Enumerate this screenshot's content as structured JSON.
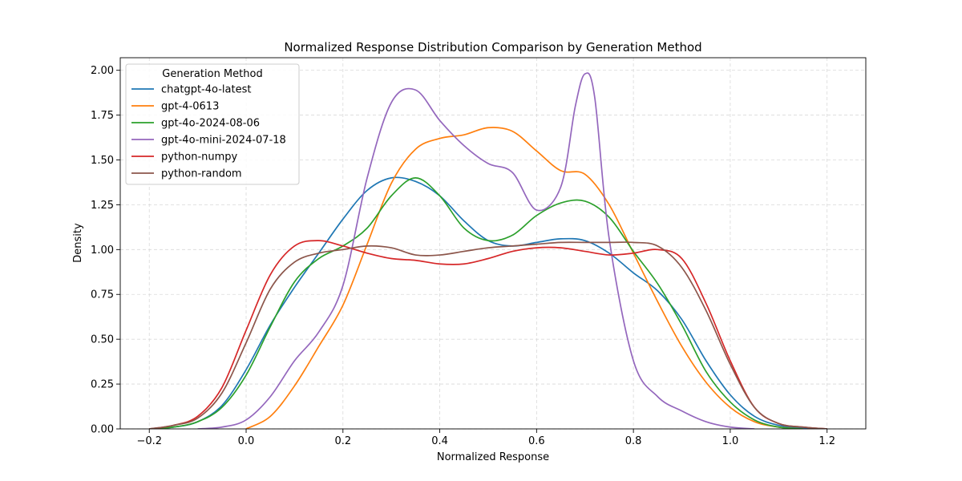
{
  "chart_data": {
    "type": "line",
    "title": "Normalized Response Distribution Comparison by Generation Method",
    "xlabel": "Normalized Response",
    "ylabel": "Density",
    "xlim": [
      -0.26,
      1.28
    ],
    "ylim": [
      0,
      2.07
    ],
    "xticks": [
      -0.2,
      0.0,
      0.2,
      0.4,
      0.6,
      0.8,
      1.0,
      1.2
    ],
    "xtick_labels": [
      "−0.2",
      "0.0",
      "0.2",
      "0.4",
      "0.6",
      "0.8",
      "1.0",
      "1.2"
    ],
    "yticks": [
      0,
      0.25,
      0.5,
      0.75,
      1.0,
      1.25,
      1.5,
      1.75,
      2.0
    ],
    "ytick_labels": [
      "0.00",
      "0.25",
      "0.50",
      "0.75",
      "1.00",
      "1.25",
      "1.50",
      "1.75",
      "2.00"
    ],
    "grid": true,
    "legend": {
      "title": "Generation Method",
      "placement": "top-left"
    },
    "series": [
      {
        "name": "chatgpt-4o-latest",
        "color": "#1f77b4",
        "points": [
          [
            -0.2,
            0
          ],
          [
            -0.15,
            0.01
          ],
          [
            -0.1,
            0.04
          ],
          [
            -0.05,
            0.13
          ],
          [
            0.0,
            0.33
          ],
          [
            0.05,
            0.58
          ],
          [
            0.1,
            0.79
          ],
          [
            0.15,
            0.98
          ],
          [
            0.2,
            1.17
          ],
          [
            0.25,
            1.33
          ],
          [
            0.3,
            1.4
          ],
          [
            0.35,
            1.38
          ],
          [
            0.4,
            1.3
          ],
          [
            0.45,
            1.16
          ],
          [
            0.5,
            1.05
          ],
          [
            0.55,
            1.02
          ],
          [
            0.6,
            1.04
          ],
          [
            0.65,
            1.06
          ],
          [
            0.7,
            1.05
          ],
          [
            0.75,
            0.98
          ],
          [
            0.8,
            0.87
          ],
          [
            0.85,
            0.77
          ],
          [
            0.9,
            0.61
          ],
          [
            0.95,
            0.38
          ],
          [
            1.0,
            0.19
          ],
          [
            1.05,
            0.07
          ],
          [
            1.1,
            0.02
          ],
          [
            1.15,
            0.005
          ],
          [
            1.2,
            0
          ]
        ]
      },
      {
        "name": "gpt-4-0613",
        "color": "#ff7f0e",
        "points": [
          [
            0.0,
            0
          ],
          [
            0.05,
            0.07
          ],
          [
            0.1,
            0.24
          ],
          [
            0.15,
            0.46
          ],
          [
            0.2,
            0.69
          ],
          [
            0.25,
            1.03
          ],
          [
            0.3,
            1.37
          ],
          [
            0.35,
            1.56
          ],
          [
            0.4,
            1.62
          ],
          [
            0.45,
            1.64
          ],
          [
            0.5,
            1.68
          ],
          [
            0.55,
            1.66
          ],
          [
            0.6,
            1.55
          ],
          [
            0.65,
            1.44
          ],
          [
            0.7,
            1.42
          ],
          [
            0.75,
            1.25
          ],
          [
            0.8,
            0.98
          ],
          [
            0.85,
            0.71
          ],
          [
            0.9,
            0.46
          ],
          [
            0.95,
            0.26
          ],
          [
            1.0,
            0.12
          ],
          [
            1.05,
            0.04
          ],
          [
            1.1,
            0.01
          ],
          [
            1.15,
            0
          ]
        ]
      },
      {
        "name": "gpt-4o-2024-08-06",
        "color": "#2ca02c",
        "points": [
          [
            -0.2,
            0
          ],
          [
            -0.15,
            0.01
          ],
          [
            -0.1,
            0.04
          ],
          [
            -0.05,
            0.12
          ],
          [
            0.0,
            0.3
          ],
          [
            0.05,
            0.57
          ],
          [
            0.1,
            0.82
          ],
          [
            0.15,
            0.95
          ],
          [
            0.2,
            1.02
          ],
          [
            0.25,
            1.12
          ],
          [
            0.3,
            1.3
          ],
          [
            0.35,
            1.4
          ],
          [
            0.4,
            1.3
          ],
          [
            0.45,
            1.12
          ],
          [
            0.5,
            1.05
          ],
          [
            0.55,
            1.08
          ],
          [
            0.6,
            1.19
          ],
          [
            0.65,
            1.26
          ],
          [
            0.7,
            1.27
          ],
          [
            0.75,
            1.18
          ],
          [
            0.8,
            0.99
          ],
          [
            0.85,
            0.81
          ],
          [
            0.9,
            0.58
          ],
          [
            0.95,
            0.32
          ],
          [
            1.0,
            0.15
          ],
          [
            1.05,
            0.05
          ],
          [
            1.1,
            0.01
          ],
          [
            1.15,
            0
          ]
        ]
      },
      {
        "name": "gpt-4o-mini-2024-07-18",
        "color": "#9467bd",
        "points": [
          [
            -0.1,
            0
          ],
          [
            -0.05,
            0.01
          ],
          [
            0.0,
            0.05
          ],
          [
            0.05,
            0.18
          ],
          [
            0.1,
            0.38
          ],
          [
            0.15,
            0.54
          ],
          [
            0.2,
            0.8
          ],
          [
            0.25,
            1.4
          ],
          [
            0.3,
            1.82
          ],
          [
            0.35,
            1.89
          ],
          [
            0.4,
            1.72
          ],
          [
            0.45,
            1.58
          ],
          [
            0.5,
            1.48
          ],
          [
            0.55,
            1.43
          ],
          [
            0.6,
            1.22
          ],
          [
            0.65,
            1.35
          ],
          [
            0.68,
            1.8
          ],
          [
            0.7,
            1.98
          ],
          [
            0.72,
            1.85
          ],
          [
            0.75,
            1.06
          ],
          [
            0.8,
            0.38
          ],
          [
            0.85,
            0.18
          ],
          [
            0.9,
            0.1
          ],
          [
            0.95,
            0.04
          ],
          [
            1.0,
            0.01
          ],
          [
            1.05,
            0
          ]
        ]
      },
      {
        "name": "python-numpy",
        "color": "#d62728",
        "points": [
          [
            -0.2,
            0
          ],
          [
            -0.15,
            0.02
          ],
          [
            -0.1,
            0.07
          ],
          [
            -0.05,
            0.23
          ],
          [
            0.0,
            0.55
          ],
          [
            0.05,
            0.86
          ],
          [
            0.1,
            1.02
          ],
          [
            0.15,
            1.05
          ],
          [
            0.2,
            1.02
          ],
          [
            0.25,
            0.98
          ],
          [
            0.3,
            0.95
          ],
          [
            0.35,
            0.94
          ],
          [
            0.4,
            0.92
          ],
          [
            0.45,
            0.92
          ],
          [
            0.5,
            0.95
          ],
          [
            0.55,
            0.99
          ],
          [
            0.6,
            1.01
          ],
          [
            0.65,
            1.01
          ],
          [
            0.7,
            0.99
          ],
          [
            0.75,
            0.97
          ],
          [
            0.8,
            0.98
          ],
          [
            0.85,
            1.0
          ],
          [
            0.9,
            0.95
          ],
          [
            0.95,
            0.7
          ],
          [
            1.0,
            0.38
          ],
          [
            1.05,
            0.12
          ],
          [
            1.1,
            0.03
          ],
          [
            1.15,
            0.01
          ],
          [
            1.2,
            0
          ]
        ]
      },
      {
        "name": "python-random",
        "color": "#8c564b",
        "points": [
          [
            -0.2,
            0
          ],
          [
            -0.15,
            0.02
          ],
          [
            -0.1,
            0.06
          ],
          [
            -0.05,
            0.2
          ],
          [
            0.0,
            0.48
          ],
          [
            0.05,
            0.78
          ],
          [
            0.1,
            0.93
          ],
          [
            0.15,
            0.98
          ],
          [
            0.2,
            1.0
          ],
          [
            0.25,
            1.02
          ],
          [
            0.3,
            1.01
          ],
          [
            0.35,
            0.97
          ],
          [
            0.4,
            0.97
          ],
          [
            0.45,
            0.99
          ],
          [
            0.5,
            1.01
          ],
          [
            0.55,
            1.02
          ],
          [
            0.6,
            1.03
          ],
          [
            0.65,
            1.04
          ],
          [
            0.7,
            1.04
          ],
          [
            0.75,
            1.04
          ],
          [
            0.8,
            1.04
          ],
          [
            0.85,
            1.02
          ],
          [
            0.9,
            0.9
          ],
          [
            0.95,
            0.66
          ],
          [
            1.0,
            0.36
          ],
          [
            1.05,
            0.12
          ],
          [
            1.1,
            0.03
          ],
          [
            1.15,
            0.01
          ],
          [
            1.2,
            0
          ]
        ]
      }
    ]
  }
}
